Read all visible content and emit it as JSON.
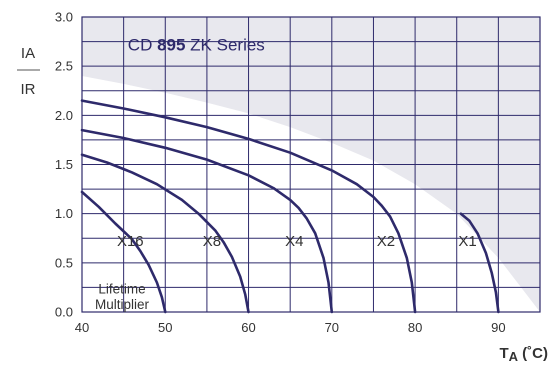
{
  "chart_data": {
    "type": "line",
    "title_parts": [
      "CD ",
      "895",
      " ZK Series"
    ],
    "ylabel_top": "IA",
    "ylabel_bottom": "IR",
    "xlabel_main": "T",
    "xlabel_sub": "A",
    "xlabel_unit": " (˚C)",
    "annotation": [
      "Lifetime",
      "Multiplier"
    ],
    "xlim": [
      40,
      95
    ],
    "ylim": [
      0,
      3.0
    ],
    "x_ticks": [
      40,
      50,
      60,
      70,
      80,
      90
    ],
    "x_tick_labels": [
      "40",
      "50",
      "60",
      "70",
      "80",
      "90"
    ],
    "y_ticks": [
      0,
      0.5,
      1.0,
      1.5,
      2.0,
      2.5,
      3.0
    ],
    "y_tick_labels": [
      "0.0",
      "0.5",
      "1.0",
      "1.5",
      "2.0",
      "2.5",
      "3.0"
    ],
    "grid": true,
    "colors": {
      "curve": "#2e2a6b",
      "region": "#e8e8ee",
      "grid": "#2e2a6b",
      "text": "#333333"
    },
    "region_boundary": {
      "x": [
        40,
        45,
        50,
        55,
        60,
        65,
        70,
        75,
        80,
        85,
        90,
        95
      ],
      "y": [
        2.4,
        2.32,
        2.23,
        2.13,
        2.02,
        1.88,
        1.72,
        1.54,
        1.3,
        1.0,
        0.55,
        0.0
      ]
    },
    "series": [
      {
        "name": "X16",
        "x": [
          40,
          42,
          44,
          46,
          47,
          48,
          49,
          49.6,
          50
        ],
        "y": [
          1.22,
          1.07,
          0.9,
          0.74,
          0.62,
          0.48,
          0.3,
          0.15,
          0.0
        ]
      },
      {
        "name": "X8",
        "x": [
          40,
          43,
          46,
          49,
          52,
          54,
          56,
          57,
          58,
          59,
          59.6,
          60
        ],
        "y": [
          1.6,
          1.52,
          1.42,
          1.3,
          1.14,
          1.0,
          0.83,
          0.71,
          0.56,
          0.36,
          0.18,
          0.0
        ]
      },
      {
        "name": "X4",
        "x": [
          40,
          45,
          50,
          55,
          60,
          63,
          65,
          66,
          67,
          68,
          69,
          69.6,
          70
        ],
        "y": [
          1.85,
          1.77,
          1.67,
          1.55,
          1.39,
          1.26,
          1.14,
          1.06,
          0.95,
          0.8,
          0.55,
          0.3,
          0.0
        ]
      },
      {
        "name": "X2",
        "x": [
          40,
          45,
          50,
          55,
          60,
          65,
          70,
          73,
          75,
          76,
          77,
          78,
          79,
          79.6,
          80
        ],
        "y": [
          2.15,
          2.07,
          1.98,
          1.88,
          1.76,
          1.62,
          1.44,
          1.3,
          1.17,
          1.08,
          0.97,
          0.8,
          0.55,
          0.3,
          0.0
        ]
      },
      {
        "name": "X1",
        "x": [
          85.5,
          86.5,
          87.5,
          88.5,
          89.2,
          89.7,
          90
        ],
        "y": [
          1.0,
          0.93,
          0.8,
          0.6,
          0.4,
          0.2,
          0.0
        ]
      }
    ]
  }
}
